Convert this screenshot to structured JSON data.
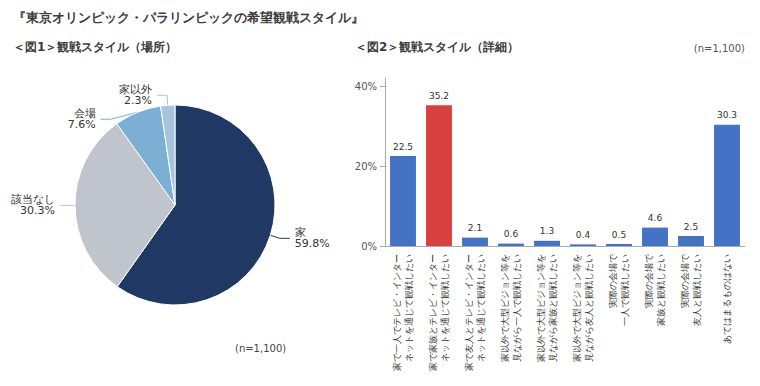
{
  "title": "『東京オリンピック・パラリンピックの希望観戦スタイル』",
  "chart_data": [
    {
      "type": "pie",
      "title": "＜図1＞観戦スタイル（場所）",
      "annotations": [
        "(n=1,100)"
      ],
      "categories": [
        "家",
        "該当なし",
        "会場",
        "家以外"
      ],
      "values": [
        59.8,
        30.3,
        7.6,
        2.3
      ],
      "value_labels": [
        "59.8%",
        "30.3%",
        "7.6%",
        "2.3%"
      ],
      "colors": [
        "#1f3864",
        "#c0c4cc",
        "#7bafd4",
        "#a8c4dc"
      ],
      "data_labels": true
    },
    {
      "type": "bar",
      "title": "＜図2＞観戦スタイル（詳細）",
      "annotations": [
        "(n=1,100)"
      ],
      "categories": [
        "家で一人でテレビ・インター\nネットを通じて観戦したい",
        "家で家族とテレビ・インター\nネットを通じて観戦したい",
        "家で友人とテレビ・インター\nネットを通じて観戦したい",
        "家以外で大型ビジョン等を\n見ながら一人で観戦したい",
        "家以外で大型ビジョン等を\n見ながら家族と観戦したい",
        "家以外で大型ビジョン等を\n見ながら友人と観戦したい",
        "実際の会場で\n一人で観戦したい",
        "実際の会場で\n家族と観戦したい",
        "実際の会場で\n友人と観戦したい",
        "あてはまるものはない"
      ],
      "values": [
        22.5,
        35.2,
        2.1,
        0.6,
        1.3,
        0.4,
        0.5,
        4.6,
        2.5,
        30.3
      ],
      "colors": [
        "#4472c4",
        "#d94040",
        "#4472c4",
        "#4472c4",
        "#4472c4",
        "#4472c4",
        "#4472c4",
        "#4472c4",
        "#4472c4",
        "#4472c4"
      ],
      "ylim": [
        0,
        42
      ],
      "yticks": [
        {
          "value": 0,
          "label": "0%"
        },
        {
          "value": 20,
          "label": "20%"
        },
        {
          "value": 40,
          "label": "40%"
        }
      ],
      "grid": false,
      "data_labels": true
    }
  ]
}
